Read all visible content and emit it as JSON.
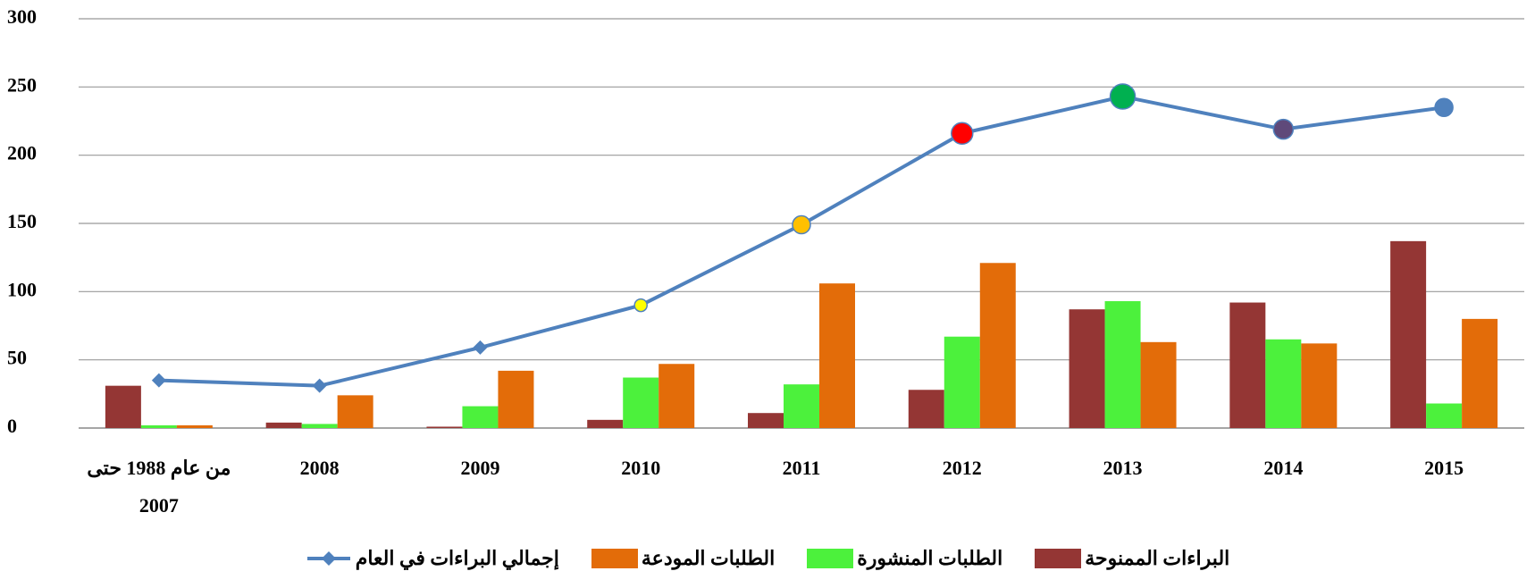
{
  "chart_data": {
    "type": "bar",
    "categories": [
      "من عام 1988 حتى 2007",
      "2008",
      "2009",
      "2010",
      "2011",
      "2012",
      "2013",
      "2014",
      "2015"
    ],
    "series": [
      {
        "name": "البراءات الممنوحة",
        "color": "#943634",
        "values": [
          31,
          4,
          1,
          6,
          11,
          28,
          87,
          92,
          137
        ]
      },
      {
        "name": "الطلبات المنشورة",
        "color": "#4cf13c",
        "values": [
          2,
          3,
          16,
          37,
          32,
          67,
          93,
          65,
          18
        ]
      },
      {
        "name": "الطلبات المودعة",
        "color": "#e36c09",
        "values": [
          2,
          24,
          42,
          47,
          106,
          121,
          63,
          62,
          80
        ]
      },
      {
        "name": "إجمالي البراءات في العام",
        "type": "line",
        "color": "#4f81bd",
        "values": [
          35,
          31,
          59,
          90,
          149,
          216,
          243,
          219,
          235
        ],
        "marker_colors": [
          "#4f81bd",
          "#4f81bd",
          "#4f81bd",
          "#ffff00",
          "#ffc000",
          "#ff0000",
          "#00b050",
          "#5f497a",
          "#4f81bd"
        ]
      }
    ],
    "ylim": [
      0,
      300
    ],
    "yticks": [
      0,
      50,
      100,
      150,
      200,
      250,
      300
    ],
    "grid": true,
    "legend": "bottom"
  }
}
